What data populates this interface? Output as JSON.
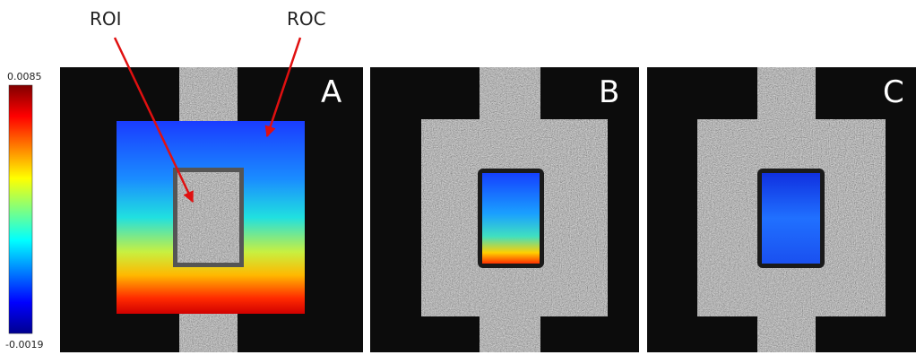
{
  "colorbar": {
    "max": "0.0085",
    "min": "-0.0019"
  },
  "annotations": [
    "ROI",
    "ROC"
  ],
  "panels": [
    {
      "label": "A"
    },
    {
      "label": "B"
    },
    {
      "label": "C"
    }
  ]
}
